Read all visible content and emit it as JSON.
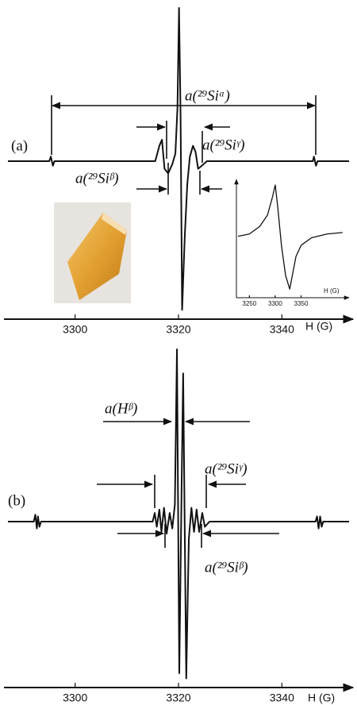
{
  "chart_data": [
    {
      "type": "line",
      "label": "(a)",
      "xlabel": "H (G)",
      "x": [
        3287,
        3295,
        3295.3,
        3295.7,
        3296,
        3315.5,
        3316.3,
        3316.8,
        3317.3,
        3318,
        3318.8,
        3319.4,
        3319.8,
        3320.1,
        3320.4,
        3320.7,
        3321.2,
        3321.7,
        3322.2,
        3322.8,
        3323.3,
        3323.8,
        3324.5,
        3325.5,
        3346,
        3346.2,
        3346.6,
        3346.9,
        3353
      ],
      "series": [
        {
          "color": "#111111",
          "values": [
            0,
            0,
            3,
            -3,
            0,
            0,
            10,
            14,
            -5,
            -8,
            -2,
            5,
            35,
            100,
            30,
            -97,
            -50,
            -15,
            3,
            10,
            6,
            -5,
            -3,
            0,
            0,
            3,
            -3,
            0,
            0
          ]
        }
      ],
      "xlim": [
        3287,
        3353
      ],
      "xticks": [
        3300,
        3320,
        3340
      ],
      "annotations": [
        "a(²⁹Siᵅ)",
        "a(²⁹Siᵞ)",
        "a(²⁹Siᵝ)"
      ]
    },
    {
      "type": "line",
      "xlabel": "H (G)",
      "x": [
        3228,
        3250,
        3270,
        3285,
        3295,
        3300,
        3305,
        3312,
        3320,
        3328,
        3333,
        3340,
        3350,
        3370,
        3400,
        3430
      ],
      "series": [
        {
          "color": "#111111",
          "values": [
            -8,
            -5,
            5,
            20,
            45,
            60,
            30,
            -20,
            -60,
            -78,
            -60,
            -35,
            -20,
            -10,
            -5,
            -3
          ]
        }
      ],
      "xlim": [
        3225,
        3435
      ],
      "xticks": [
        3250,
        3300,
        3350
      ]
    },
    {
      "type": "line",
      "label": "(b)",
      "xlabel": "H (G)",
      "x": [
        3287,
        3292,
        3292.3,
        3292.6,
        3292.8,
        3293.1,
        3293.4,
        3315,
        3315.4,
        3315.8,
        3316.3,
        3316.7,
        3317.2,
        3317.7,
        3318.3,
        3318.8,
        3319.3,
        3319.7,
        3320.15,
        3320.6,
        3320.9,
        3321.5,
        3322,
        3322.5,
        3323,
        3323.5,
        3324,
        3324.6,
        3325.1,
        3326,
        3346.5,
        3346.8,
        3347.1,
        3347.4,
        3347.7,
        3348,
        3353
      ],
      "series": [
        {
          "color": "#111111",
          "values": [
            0,
            0,
            4,
            -4,
            3,
            -3,
            0,
            0,
            5,
            -3,
            7,
            -6,
            8,
            -7,
            5,
            -4,
            10,
            100,
            -88,
            20,
            86,
            -91,
            -10,
            8,
            -6,
            7,
            -6,
            5,
            -3,
            0,
            0,
            3,
            -4,
            3,
            -3,
            0,
            0
          ]
        }
      ],
      "xlim": [
        3287,
        3353
      ],
      "xticks": [
        3300,
        3320,
        3340
      ],
      "annotations": [
        "a(Hᵝ)",
        "a(²⁹Siᵞ)",
        "a(²⁹Siᵝ)"
      ]
    }
  ]
}
